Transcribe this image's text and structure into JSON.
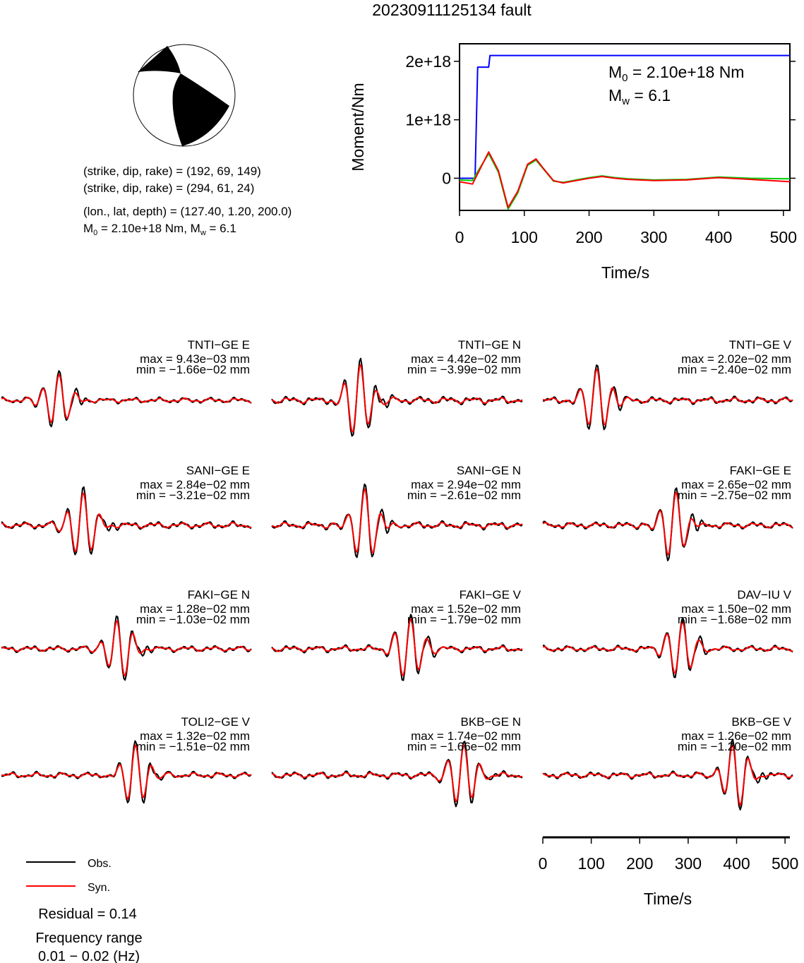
{
  "title": "20230911125134 fault",
  "mechanism": {
    "line1": "(strike, dip, rake) = (192, 69, 149)",
    "line2": "(strike, dip, rake) = (294, 61, 24)",
    "line3": "(lon., lat, depth) = (127.40, 1.20, 200.0)",
    "line4_pre": "M",
    "line4_sub": "0",
    "line4_post": " = 2.10e+18 Nm, M",
    "line4_sub2": "w",
    "line4_end": " = 6.1"
  },
  "moment_panel": {
    "ylabel": "Moment/Nm",
    "xlabel": "Time/s",
    "m0_pre": "M",
    "m0_sub": "0",
    "m0_post": " = 2.10e+18 Nm",
    "mw_pre": "M",
    "mw_sub": "w",
    "mw_post": " = 6.1",
    "yticks": [
      "2e+18",
      "1e+18",
      "0"
    ],
    "xticks": [
      "0",
      "100",
      "200",
      "300",
      "400",
      "500"
    ]
  },
  "chart_data": [
    {
      "type": "line",
      "title": "",
      "xlabel": "Time/s",
      "ylabel": "Moment/Nm",
      "xlim": [
        0,
        510
      ],
      "ylim": [
        -5.5e+17,
        2.3e+18
      ],
      "series": [
        {
          "color": "#0000ff",
          "x": [
            0,
            20,
            24,
            28,
            30,
            45,
            47,
            510
          ],
          "values": [
            0,
            0,
            0,
            1.9e+18,
            1.9e+18,
            1.9e+18,
            2.1e+18,
            2.1e+18
          ]
        },
        {
          "color": "#00cc00",
          "x": [
            0,
            20,
            30,
            45,
            60,
            75,
            90,
            105,
            118,
            130,
            145,
            160,
            180,
            200,
            220,
            240,
            260,
            300,
            350,
            400,
            450,
            510
          ],
          "values": [
            -3e+16,
            -4e+16,
            1.5e+17,
            4.2e+17,
            1e+17,
            -5.3e+17,
            -2.5e+17,
            2.2e+17,
            3.1e+17,
            1.5e+17,
            -5e+16,
            -7e+16,
            -3e+16,
            1e+16,
            4e+16,
            1e+16,
            -1e+16,
            -3e+16,
            -2e+16,
            2e+16,
            0,
            -1e+16
          ]
        },
        {
          "color": "#ff0000",
          "x": [
            0,
            20,
            30,
            45,
            60,
            75,
            90,
            105,
            118,
            130,
            145,
            160,
            180,
            200,
            220,
            240,
            260,
            300,
            350,
            400,
            450,
            510
          ],
          "values": [
            -6e+16,
            -1e+17,
            1.2e+17,
            4.5e+17,
            1.3e+17,
            -5e+17,
            -2.2e+17,
            2.4e+17,
            3.3e+17,
            1.6e+17,
            -4e+16,
            -8e+16,
            -4e+16,
            0,
            3e+16,
            0,
            -2e+16,
            -4e+16,
            -3e+16,
            1e+16,
            -2e+16,
            -6e+16
          ]
        }
      ]
    }
  ],
  "stations": [
    {
      "name": "TNTI−GE E",
      "max": "max = 9.43e−03 mm",
      "min": "min = −1.66e−02 mm"
    },
    {
      "name": "TNTI−GE N",
      "max": "max = 4.42e−02 mm",
      "min": "min = −3.99e−02 mm"
    },
    {
      "name": "TNTI−GE V",
      "max": "max = 2.02e−02 mm",
      "min": "min = −2.40e−02 mm"
    },
    {
      "name": "SANI−GE E",
      "max": "max = 2.84e−02 mm",
      "min": "min = −3.21e−02 mm"
    },
    {
      "name": "SANI−GE N",
      "max": "max = 2.94e−02 mm",
      "min": "min = −2.61e−02 mm"
    },
    {
      "name": "FAKI−GE E",
      "max": "max = 2.65e−02 mm",
      "min": "min = −2.75e−02 mm"
    },
    {
      "name": "FAKI−GE N",
      "max": "max = 1.28e−02 mm",
      "min": "min = −1.03e−02 mm"
    },
    {
      "name": "FAKI−GE V",
      "max": "max = 1.52e−02 mm",
      "min": "min = −1.79e−02 mm"
    },
    {
      "name": "DAV−IU V",
      "max": "max = 1.50e−02 mm",
      "min": "min = −1.68e−02 mm"
    },
    {
      "name": "TOLI2−GE V",
      "max": "max = 1.32e−02 mm",
      "min": "min = −1.51e−02 mm"
    },
    {
      "name": "BKB−GE N",
      "max": "max = 1.74e−02 mm",
      "min": "min = −1.66e−02 mm"
    },
    {
      "name": "BKB−GE V",
      "max": "max = 1.26e−02 mm",
      "min": "min = −1.20e−02 mm"
    }
  ],
  "bottom_axis": {
    "xlabel": "Time/s",
    "xticks": [
      "0",
      "100",
      "200",
      "300",
      "400",
      "500"
    ]
  },
  "legend": {
    "obs": "Obs.",
    "syn": "Syn.",
    "obs_color": "#000000",
    "syn_color": "#ff0000"
  },
  "residual": "Residual = 0.14",
  "freq_line1": "Frequency range",
  "freq_line2": "0.01 − 0.02 (Hz)"
}
